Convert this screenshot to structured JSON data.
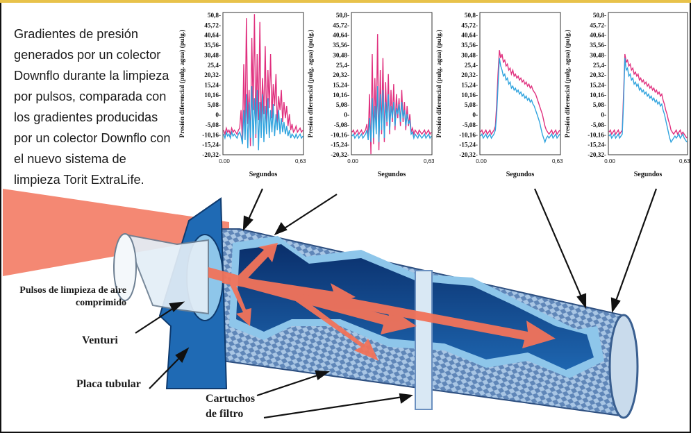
{
  "caption": "Gradientes de presión generados por un colector Downflo durante la limpieza por pulsos, comparada con los gradientes producidas por un colector Downflo con el nuevo sistema de limpieza Torit ExtraLife.",
  "labels": {
    "pulse": "Pulsos de limpieza de aire comprimido",
    "venturi": "Venturi",
    "tubesheet": "Placa tubular",
    "cartridges": "Cartuchos de filtro"
  },
  "colors": {
    "magenta": "#e0307e",
    "cyan": "#2fa3de",
    "tube_dark": "#0a2f6b",
    "tube_mid": "#1f5fa8",
    "tube_light": "#8ec6ea",
    "air": "#f2735a"
  },
  "chart_data": [
    {
      "type": "line",
      "ylabel": "Presión diferencial (pulg. agua) (pulg.)",
      "xlabel": "Segundos",
      "x_ticks": [
        "0.00",
        "0,635"
      ],
      "y_ticks": [
        "50,8-",
        "45,72-",
        "40,64-",
        "35,56-",
        "30,48-",
        "25,4-",
        "20,32-",
        "15,24-",
        "10,16-",
        "5,08-",
        "0-",
        "-5,08-",
        "-10,16-",
        "-15,24-",
        "-20,32-"
      ],
      "ylim": [
        -20.32,
        50.8
      ],
      "series": [
        {
          "color": "magenta",
          "values": [
            -8,
            -10,
            -7,
            -9,
            -8,
            -10,
            -7,
            -9,
            -8,
            -9,
            -10,
            -8,
            -7,
            2,
            -14,
            25,
            -10,
            48,
            -5,
            12,
            -16,
            38,
            2,
            50,
            -12,
            30,
            -3,
            46,
            -8,
            18,
            0,
            34,
            -5,
            22,
            3,
            30,
            -2,
            15,
            4,
            20,
            -6,
            9,
            2,
            12,
            -4,
            6,
            -2,
            4,
            -6,
            0,
            -8,
            -5,
            -9,
            -8,
            -6,
            -9,
            -8,
            -7,
            -9,
            -8
          ]
        },
        {
          "color": "cyan",
          "values": [
            -10,
            -12,
            -9,
            -11,
            -10,
            -12,
            -9,
            -11,
            -10,
            -11,
            -12,
            -10,
            -9,
            -11,
            -15,
            2,
            -13,
            10,
            -17,
            6,
            -12,
            14,
            -16,
            8,
            -10,
            12,
            -18,
            6,
            -12,
            10,
            -14,
            4,
            -10,
            8,
            -12,
            2,
            -9,
            5,
            -11,
            0,
            -8,
            2,
            -10,
            -2,
            -9,
            -4,
            -10,
            -6,
            -11,
            -8,
            -12,
            -10,
            -11,
            -12,
            -10,
            -12,
            -11,
            -10,
            -12,
            -11
          ]
        }
      ]
    },
    {
      "type": "line",
      "ylabel": "Presión diferencial (pulg. agua) (pulg.)",
      "xlabel": "Segundos",
      "x_ticks": [
        "0.00",
        "0,635"
      ],
      "y_ticks": [
        "50,8-",
        "45,72-",
        "40,64-",
        "35,56-",
        "30,48-",
        "25,4-",
        "20,32-",
        "15,24-",
        "10,16-",
        "5,08-",
        "0-",
        "-5,08-",
        "-10,16-",
        "-15,24-",
        "-20,32-"
      ],
      "ylim": [
        -20.32,
        50.8
      ],
      "series": [
        {
          "color": "magenta",
          "values": [
            -9,
            -8,
            -10,
            -9,
            -8,
            -10,
            -9,
            -8,
            -10,
            -9,
            -8,
            -5,
            -12,
            10,
            -20,
            30,
            -15,
            18,
            -8,
            40,
            -18,
            22,
            -10,
            28,
            -14,
            16,
            -6,
            20,
            -10,
            12,
            -4,
            15,
            -8,
            10,
            -2,
            8,
            -6,
            12,
            -4,
            6,
            -8,
            4,
            -6,
            0,
            -9,
            -7,
            -10,
            -8,
            -9,
            -10,
            -8,
            -9,
            -10,
            -9,
            -8,
            -10,
            -9,
            -8,
            -10,
            -9
          ]
        },
        {
          "color": "cyan",
          "values": [
            -11,
            -10,
            -12,
            -11,
            -10,
            -12,
            -11,
            -10,
            -12,
            -11,
            -10,
            -8,
            -13,
            -2,
            -14,
            8,
            -12,
            4,
            -10,
            14,
            -14,
            10,
            -8,
            12,
            -12,
            6,
            -4,
            10,
            -8,
            4,
            -2,
            6,
            -6,
            3,
            0,
            5,
            -4,
            6,
            -2,
            2,
            -6,
            0,
            -5,
            -3,
            -10,
            -9,
            -12,
            -10,
            -11,
            -12,
            -10,
            -11,
            -12,
            -11,
            -10,
            -12,
            -11,
            -10,
            -12,
            -11
          ]
        }
      ]
    },
    {
      "type": "line",
      "ylabel": "Presión diferencial (pulg. agua) (pulg.)",
      "xlabel": "Segundos",
      "x_ticks": [
        "0.00",
        "0,635"
      ],
      "y_ticks": [
        "50,8-",
        "45,72-",
        "40,64-",
        "35,56-",
        "30,48-",
        "25,4-",
        "20,32-",
        "15,24-",
        "10,16-",
        "5,08-",
        "0-",
        "-5,08-",
        "-10,16-",
        "-15,24-",
        "-20,32-"
      ],
      "ylim": [
        -20.32,
        50.8
      ],
      "series": [
        {
          "color": "magenta",
          "values": [
            -9,
            -8,
            -10,
            -9,
            -8,
            -10,
            -9,
            -8,
            -10,
            -9,
            -8,
            -6,
            5,
            20,
            32,
            28,
            30,
            26,
            27,
            24,
            25,
            22,
            23,
            20,
            22,
            19,
            20,
            18,
            19,
            17,
            18,
            16,
            17,
            15,
            16,
            14,
            15,
            13,
            14,
            12,
            11,
            10,
            8,
            6,
            4,
            2,
            0,
            -3,
            -6,
            -8,
            -9,
            -10,
            -9,
            -8,
            -10,
            -9,
            -8,
            -10,
            -9,
            -8
          ]
        },
        {
          "color": "cyan",
          "values": [
            -11,
            -10,
            -12,
            -11,
            -10,
            -12,
            -11,
            -10,
            -12,
            -11,
            -10,
            -8,
            0,
            14,
            28,
            24,
            22,
            19,
            20,
            17,
            18,
            15,
            16,
            13,
            14,
            12,
            13,
            11,
            12,
            10,
            11,
            9,
            10,
            8,
            9,
            7,
            8,
            6,
            7,
            5,
            4,
            2,
            0,
            -2,
            -4,
            -7,
            -10,
            -12,
            -14,
            -12,
            -11,
            -12,
            -11,
            -10,
            -12,
            -11,
            -10,
            -12,
            -11,
            -10
          ]
        }
      ]
    },
    {
      "type": "line",
      "ylabel": "Presión diferencial (pulg. agua) (pulg.)",
      "xlabel": "Segundos",
      "x_ticks": [
        "0.00",
        "0,635"
      ],
      "y_ticks": [
        "50,8-",
        "45,72-",
        "40,64-",
        "35,56-",
        "30,48-",
        "25,4-",
        "20,32-",
        "15,24-",
        "10,16-",
        "5,08-",
        "0-",
        "-5,08-",
        "-10,16-",
        "-15,24-",
        "-20,32-"
      ],
      "ylim": [
        -20.32,
        50.8
      ],
      "series": [
        {
          "color": "magenta",
          "values": [
            -9,
            -8,
            -10,
            -9,
            -8,
            -10,
            -9,
            -8,
            -10,
            -9,
            -8,
            10,
            30,
            26,
            27,
            24,
            25,
            22,
            23,
            20,
            21,
            19,
            20,
            17,
            18,
            16,
            17,
            15,
            16,
            14,
            15,
            13,
            14,
            12,
            13,
            11,
            12,
            10,
            11,
            9,
            10,
            7,
            5,
            2,
            0,
            -3,
            -5,
            -8,
            -9,
            -10,
            -9,
            -8,
            -10,
            -9,
            -8,
            -10,
            -9,
            -10,
            -11,
            -12
          ]
        },
        {
          "color": "cyan",
          "values": [
            -11,
            -10,
            -12,
            -11,
            -10,
            -12,
            -11,
            -10,
            -12,
            -11,
            -10,
            6,
            28,
            22,
            23,
            19,
            20,
            17,
            18,
            15,
            16,
            14,
            15,
            12,
            13,
            11,
            12,
            10,
            11,
            9,
            10,
            8,
            9,
            7,
            8,
            6,
            7,
            5,
            6,
            4,
            5,
            2,
            0,
            -3,
            -6,
            -9,
            -12,
            -14,
            -13,
            -12,
            -11,
            -12,
            -11,
            -10,
            -12,
            -11,
            -10,
            -12,
            -13,
            -14
          ]
        }
      ]
    }
  ]
}
